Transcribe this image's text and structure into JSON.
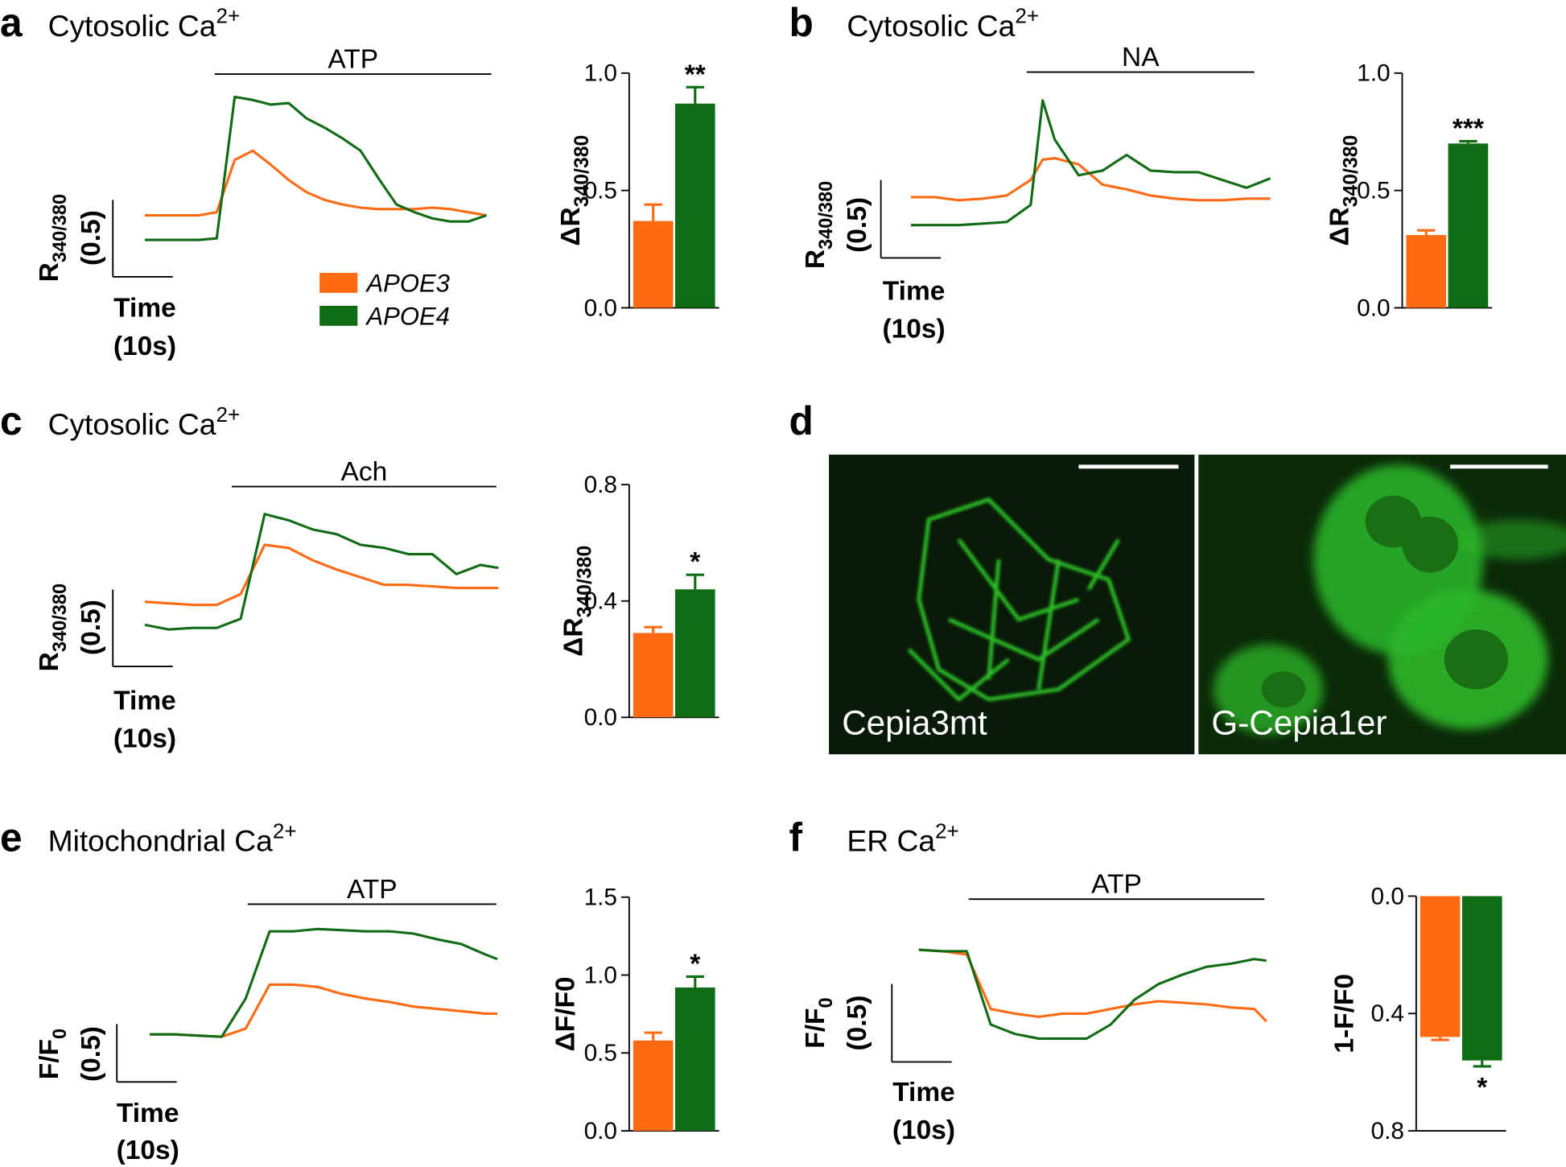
{
  "groups": [
    {
      "name": "APOE3",
      "color": "#ff6a13"
    },
    {
      "name": "APOE4",
      "color": "#0f6b14"
    }
  ],
  "panels": [
    {
      "letter": "a",
      "title": "Cytosolic Ca",
      "title_sup": "2+",
      "stimulus": "ATP",
      "trace": {
        "type": "line",
        "x": [
          0,
          3,
          6,
          9,
          12,
          15,
          18,
          21,
          24,
          27,
          30,
          33,
          36,
          39,
          42,
          45,
          48,
          51,
          54,
          57
        ],
        "series_values": [
          [
            0.4,
            0.4,
            0.4,
            0.4,
            0.42,
            0.76,
            0.82,
            0.73,
            0.63,
            0.55,
            0.5,
            0.47,
            0.45,
            0.44,
            0.44,
            0.44,
            0.45,
            0.44,
            0.42,
            0.4
          ],
          [
            0.24,
            0.24,
            0.24,
            0.24,
            0.25,
            1.17,
            1.15,
            1.12,
            1.13,
            1.03,
            0.97,
            0.9,
            0.82,
            0.64,
            0.47,
            0.42,
            0.38,
            0.36,
            0.36,
            0.4
          ]
        ],
        "scale": {
          "x": {
            "value": 10,
            "label": "(10s)"
          },
          "x_title": "Time",
          "y": {
            "value": 0.5,
            "label": "(0.5)"
          },
          "y_title": "R",
          "y_title_sub": "340/380"
        }
      },
      "bar": {
        "type": "bar",
        "ylabel": "ΔR",
        "ylabel_sub": "340/380",
        "ylim": [
          0,
          1
        ],
        "inverted": false,
        "yticks": [
          {
            "value": 0,
            "label": "0.0"
          },
          0.5,
          {
            "value": 1,
            "label": "1.0"
          }
        ],
        "values": [
          0.37,
          0.87
        ],
        "errors": [
          0.07,
          0.07
        ],
        "significance": "**"
      }
    },
    {
      "letter": "b",
      "title": "Cytosolic Ca",
      "title_sup": "2+",
      "stimulus": "NA",
      "trace": {
        "type": "line",
        "x": [
          0,
          4,
          8,
          12,
          16,
          20,
          22,
          24,
          28,
          32,
          36,
          40,
          44,
          48,
          52,
          56,
          60
        ],
        "series_values": [
          [
            0.39,
            0.39,
            0.37,
            0.38,
            0.4,
            0.5,
            0.63,
            0.64,
            0.6,
            0.47,
            0.44,
            0.4,
            0.38,
            0.37,
            0.37,
            0.38,
            0.38
          ],
          [
            0.21,
            0.21,
            0.21,
            0.22,
            0.23,
            0.34,
            1.01,
            0.76,
            0.53,
            0.56,
            0.66,
            0.56,
            0.55,
            0.55,
            0.5,
            0.45,
            0.51
          ]
        ],
        "scale": {
          "x": {
            "value": 10,
            "label": "(10s)"
          },
          "x_title": "Time",
          "y": {
            "value": 0.5,
            "label": "(0.5)"
          },
          "y_title": "R",
          "y_title_sub": "340/380"
        }
      },
      "bar": {
        "type": "bar",
        "ylabel": "ΔR",
        "ylabel_sub": "340/380",
        "ylim": [
          0,
          1
        ],
        "inverted": false,
        "yticks": [
          {
            "value": 0,
            "label": "0.0"
          },
          0.5,
          {
            "value": 1,
            "label": "1.0"
          }
        ],
        "values": [
          0.31,
          0.7
        ],
        "errors": [
          0.02,
          0.01
        ],
        "significance": "***"
      }
    },
    {
      "letter": "c",
      "title": "Cytosolic Ca",
      "title_sup": "2+",
      "stimulus": "Ach",
      "trace": {
        "type": "line",
        "x": [
          0,
          4,
          8,
          12,
          16,
          20,
          24,
          28,
          32,
          36,
          40,
          44,
          48,
          52,
          56,
          59
        ],
        "series_values": [
          [
            0.42,
            0.41,
            0.4,
            0.4,
            0.47,
            0.79,
            0.77,
            0.69,
            0.63,
            0.58,
            0.53,
            0.53,
            0.52,
            0.51,
            0.51,
            0.51
          ],
          [
            0.27,
            0.24,
            0.25,
            0.25,
            0.31,
            0.99,
            0.95,
            0.89,
            0.86,
            0.79,
            0.77,
            0.73,
            0.73,
            0.6,
            0.66,
            0.64
          ]
        ],
        "scale": {
          "x": {
            "value": 10,
            "label": "(10s)"
          },
          "x_title": "Time",
          "y": {
            "value": 0.5,
            "label": "(0.5)"
          },
          "y_title": "R",
          "y_title_sub": "340/380"
        }
      },
      "bar": {
        "type": "bar",
        "ylabel": "ΔR",
        "ylabel_sub": "340/380",
        "ylim": [
          0,
          0.8
        ],
        "inverted": false,
        "yticks": [
          {
            "value": 0,
            "label": "0.0"
          },
          0.4,
          0.8
        ],
        "values": [
          0.29,
          0.44
        ],
        "errors": [
          0.02,
          0.05
        ],
        "significance": "*"
      }
    },
    {
      "letter": "d",
      "images": [
        {
          "label": "Cepia3mt"
        },
        {
          "label": "G-Cepia1er"
        }
      ]
    },
    {
      "letter": "e",
      "title": "Mitochondrial Ca",
      "title_sup": "2+",
      "stimulus": "ATP",
      "trace": {
        "type": "line",
        "x": [
          0,
          4,
          8,
          12,
          16,
          20,
          24,
          28,
          32,
          36,
          40,
          44,
          48,
          52,
          56,
          58
        ],
        "series_values": [
          [
            0.41,
            0.41,
            0.4,
            0.39,
            0.46,
            0.84,
            0.84,
            0.82,
            0.76,
            0.72,
            0.69,
            0.65,
            0.63,
            0.61,
            0.59,
            0.59
          ],
          [
            0.41,
            0.41,
            0.4,
            0.39,
            0.72,
            1.3,
            1.3,
            1.32,
            1.31,
            1.3,
            1.3,
            1.28,
            1.23,
            1.19,
            1.1,
            1.06
          ]
        ],
        "scale": {
          "x": {
            "value": 10,
            "label": "(10s)"
          },
          "x_title": "Time",
          "y": {
            "value": 0.5,
            "label": "(0.5)"
          },
          "y_title": "F/F",
          "y_title_sub": "0"
        }
      },
      "bar": {
        "type": "bar",
        "ylabel": "ΔF/F0",
        "ylim": [
          0,
          1.5
        ],
        "inverted": false,
        "yticks": [
          {
            "value": 0,
            "label": "0.0"
          },
          0.5,
          {
            "value": 1,
            "label": "1.0"
          },
          1.5
        ],
        "values": [
          0.58,
          0.92
        ],
        "errors": [
          0.05,
          0.07
        ],
        "significance": "*"
      }
    },
    {
      "letter": "f",
      "title": "ER Ca",
      "title_sup": "2+",
      "stimulus": "ATP",
      "trace": {
        "type": "line",
        "x": [
          0,
          4,
          8,
          12,
          16,
          20,
          24,
          28,
          32,
          36,
          40,
          44,
          48,
          52,
          56,
          58
        ],
        "series_values": [
          [
            0.72,
            0.71,
            0.69,
            0.34,
            0.31,
            0.29,
            0.31,
            0.31,
            0.34,
            0.37,
            0.39,
            0.38,
            0.37,
            0.35,
            0.34,
            0.26
          ],
          [
            0.72,
            0.71,
            0.71,
            0.24,
            0.18,
            0.15,
            0.15,
            0.15,
            0.24,
            0.4,
            0.5,
            0.56,
            0.61,
            0.63,
            0.66,
            0.65
          ]
        ],
        "scale": {
          "x": {
            "value": 10,
            "label": "(10s)"
          },
          "x_title": "Time",
          "y": {
            "value": 0.5,
            "label": "(0.5)"
          },
          "y_title": "F/F",
          "y_title_sub": "0"
        }
      },
      "bar": {
        "type": "bar",
        "ylabel": "1-F/F0",
        "ylim": [
          0,
          0.8
        ],
        "inverted": true,
        "yticks": [
          {
            "value": 0,
            "label": "0.0"
          },
          0.4,
          0.8
        ],
        "values": [
          0.48,
          0.56
        ],
        "errors": [
          0.01,
          0.02
        ],
        "significance": "*"
      }
    }
  ]
}
